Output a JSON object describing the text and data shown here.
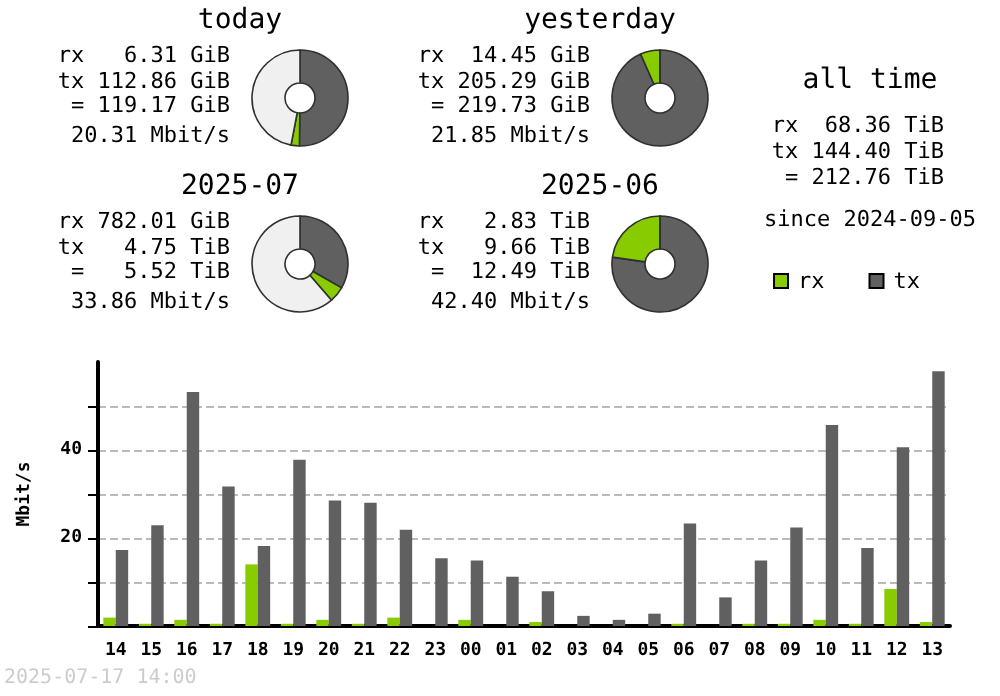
{
  "chart_data": [
    {
      "type": "donut",
      "title": "today",
      "categories": [
        null,
        null,
        null
      ],
      "values": [
        50.2,
        2.8,
        47.0
      ],
      "colors": [
        "#606060",
        "#88cc00",
        "#f0f0f0"
      ],
      "annotations": [
        "rx   6.31 GiB",
        "tx 112.86 GiB",
        "= 119.17 GiB",
        "20.31 Mbit/s"
      ]
    },
    {
      "type": "donut",
      "title": "yesterday",
      "categories": [
        null,
        null,
        null
      ],
      "values": [
        93.4,
        6.6,
        0
      ],
      "colors": [
        "#606060",
        "#88cc00",
        "#f0f0f0"
      ],
      "annotations": [
        "rx  14.45 GiB",
        "tx 205.29 GiB",
        "= 219.73 GiB",
        "21.85 Mbit/s"
      ]
    },
    {
      "type": "other",
      "title": "all time",
      "annotations": [
        "rx  68.36 TiB",
        "tx 144.40 TiB",
        "= 212.76 TiB",
        "since 2024-09-05"
      ]
    },
    {
      "type": "donut",
      "title": "2025-07",
      "categories": [
        null,
        null,
        null
      ],
      "values": [
        33.3,
        5.3,
        61.4
      ],
      "colors": [
        "#606060",
        "#88cc00",
        "#f0f0f0"
      ],
      "annotations": [
        "rx 782.01 GiB",
        "tx   4.75 TiB",
        "=   5.52 TiB",
        "33.86 Mbit/s"
      ]
    },
    {
      "type": "donut",
      "title": "2025-06",
      "categories": [
        null,
        null,
        null
      ],
      "values": [
        77.3,
        22.7,
        0
      ],
      "colors": [
        "#606060",
        "#88cc00",
        "#f0f0f0"
      ],
      "annotations": [
        "rx   2.83 TiB",
        "tx   9.66 TiB",
        "=  12.49 TiB",
        "42.40 Mbit/s"
      ]
    },
    {
      "type": "bar",
      "ylabel": "Mbit/s",
      "categories": [
        "14",
        "15",
        "16",
        "17",
        "18",
        "19",
        "20",
        "21",
        "22",
        "23",
        "00",
        "01",
        "02",
        "03",
        "04",
        "05",
        "06",
        "07",
        "08",
        "09",
        "10",
        "11",
        "12",
        "13"
      ],
      "series": [
        {
          "name": "rx",
          "color": "#88cc00",
          "values": [
            1.9,
            0.5,
            1.4,
            0.5,
            14.0,
            0.5,
            1.4,
            0.5,
            1.9,
            0,
            1.4,
            0,
            0.9,
            0,
            0,
            0,
            0.5,
            0,
            0.5,
            0.5,
            1.4,
            0.5,
            8.4,
            0.9
          ]
        },
        {
          "name": "tx",
          "color": "#606060",
          "values": [
            17.3,
            22.9,
            53.2,
            31.7,
            18.2,
            37.8,
            28.5,
            28.0,
            21.9,
            15.4,
            14.9,
            11.2,
            7.9,
            2.3,
            1.4,
            2.8,
            23.3,
            6.5,
            14.9,
            22.4,
            45.7,
            17.7,
            40.6,
            57.9
          ]
        }
      ],
      "ylim": [
        0,
        60
      ],
      "yticks": [
        {
          "value": 0,
          "label": null
        },
        {
          "value": 10,
          "label": null
        },
        20,
        {
          "value": 30,
          "label": null
        },
        40,
        {
          "value": 50,
          "label": null
        }
      ],
      "grid": "y",
      "legend": "top right",
      "annotations": [
        "2025-07-17 14:00"
      ]
    }
  ]
}
